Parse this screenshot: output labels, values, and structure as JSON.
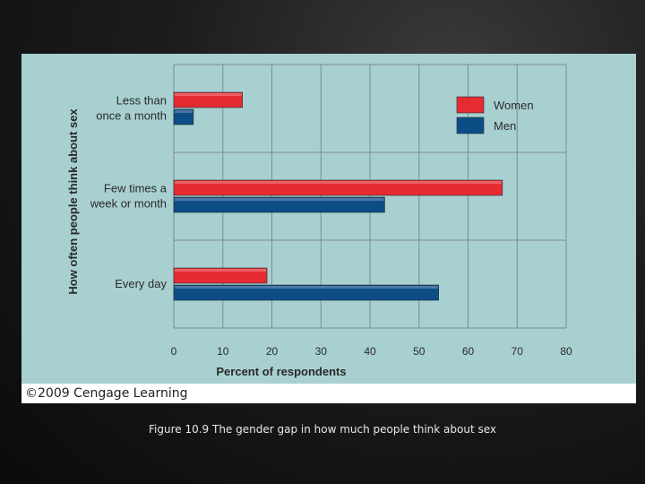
{
  "chart_data": {
    "type": "bar",
    "orientation": "horizontal",
    "categories": [
      "Less than once a month",
      "Few times a week or month",
      "Every day"
    ],
    "category_lines": [
      [
        "Less than",
        "once a month"
      ],
      [
        "Few times a",
        "week or month"
      ],
      [
        "Every day"
      ]
    ],
    "series": [
      {
        "name": "Women",
        "values": [
          14,
          67,
          19
        ],
        "color": "#e62b32"
      },
      {
        "name": "Men",
        "values": [
          4,
          43,
          54
        ],
        "color": "#0d4d86"
      }
    ],
    "xlabel": "Percent of respondents",
    "ylabel": "How often people think about sex",
    "xlim": [
      0,
      80
    ],
    "xticks": [
      0,
      10,
      20,
      30,
      40,
      50,
      60,
      70,
      80
    ],
    "grid": true,
    "legend_position": "top-right",
    "background": "#a9d0d0"
  },
  "copyright": "©2009 Cengage Learning",
  "caption": "Figure 10.9 The gender gap in how much people think about sex"
}
